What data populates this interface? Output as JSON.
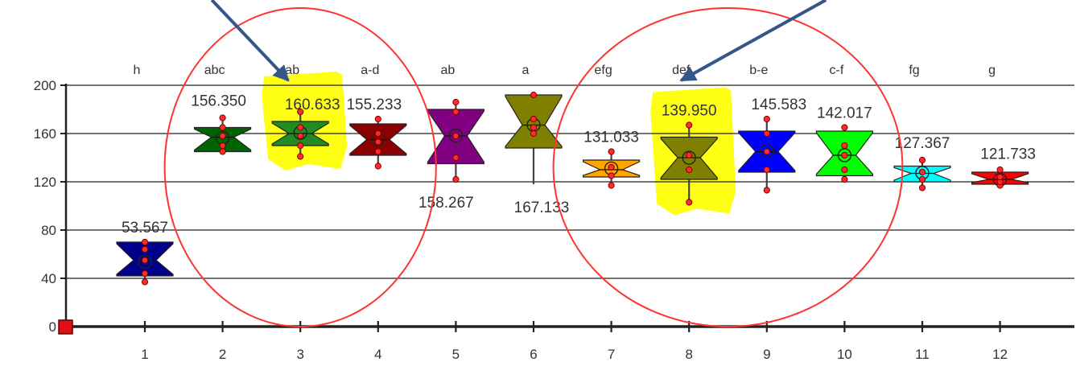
{
  "chart_data": {
    "type": "box",
    "title": "",
    "xlabel": "",
    "ylabel": "",
    "ylim": [
      0,
      200
    ],
    "y_ticks": [
      "0",
      "40",
      "80",
      "120",
      "160",
      "200"
    ],
    "x_ticks": [
      "1",
      "2",
      "3",
      "4",
      "5",
      "6",
      "7",
      "8",
      "9",
      "10",
      "11",
      "12"
    ],
    "grid": true,
    "series": [
      {
        "x": "1",
        "group": "h",
        "mean_label": "53.567",
        "mean": 53.567,
        "q1": 42,
        "median": 55,
        "q3": 70,
        "min": 37,
        "max": 70,
        "color": "#00008b",
        "points": [
          37,
          44,
          55,
          64,
          70
        ]
      },
      {
        "x": "2",
        "group": "abc",
        "mean_label": "156.350",
        "mean": 156.35,
        "q1": 145,
        "median": 157,
        "q3": 165,
        "min": 143,
        "max": 175,
        "color": "#006400",
        "points": [
          145,
          150,
          158,
          165,
          173
        ]
      },
      {
        "x": "3",
        "group": "ab",
        "mean_label": "160.633",
        "mean": 160.633,
        "q1": 150,
        "median": 160,
        "q3": 170,
        "min": 140,
        "max": 180,
        "color": "#228b22",
        "points": [
          141,
          150,
          158,
          165,
          178
        ]
      },
      {
        "x": "4",
        "group": "a-d",
        "mean_label": "155.233",
        "mean": 155.233,
        "q1": 142,
        "median": 155,
        "q3": 168,
        "min": 133,
        "max": 172,
        "color": "#8b0000",
        "points": [
          133,
          145,
          153,
          160,
          172
        ]
      },
      {
        "x": "5",
        "group": "ab",
        "mean_label": "158.267",
        "mean": 158.267,
        "q1": 135,
        "median": 158,
        "q3": 180,
        "min": 122,
        "max": 187,
        "color": "#800080",
        "points": [
          122,
          140,
          158,
          178,
          186
        ]
      },
      {
        "x": "6",
        "group": "a",
        "mean_label": "167.133",
        "mean": 167.133,
        "q1": 148,
        "median": 167,
        "q3": 192,
        "min": 118,
        "max": 192,
        "color": "#808000",
        "points": [
          160,
          165,
          172,
          192
        ]
      },
      {
        "x": "7",
        "group": "efg",
        "mean_label": "131.033",
        "mean": 131.033,
        "q1": 124,
        "median": 130,
        "q3": 138,
        "min": 117,
        "max": 145,
        "color": "#ffa500",
        "points": [
          117,
          125,
          132,
          145
        ]
      },
      {
        "x": "8",
        "group": "def",
        "mean_label": "139.950",
        "mean": 139.95,
        "q1": 122,
        "median": 140,
        "q3": 157,
        "min": 103,
        "max": 167,
        "color": "#808000",
        "points": [
          103,
          130,
          142,
          167
        ]
      },
      {
        "x": "9",
        "group": "b-e",
        "mean_label": "145.583",
        "mean": 145.583,
        "q1": 128,
        "median": 145,
        "q3": 162,
        "min": 113,
        "max": 172,
        "color": "#0000ff",
        "points": [
          113,
          130,
          145,
          160,
          172
        ]
      },
      {
        "x": "10",
        "group": "c-f",
        "mean_label": "142.017",
        "mean": 142.017,
        "q1": 125,
        "median": 142,
        "q3": 162,
        "min": 120,
        "max": 165,
        "color": "#00ff00",
        "points": [
          122,
          130,
          142,
          150,
          165
        ]
      },
      {
        "x": "11",
        "group": "fg",
        "mean_label": "127.367",
        "mean": 127.367,
        "q1": 120,
        "median": 127,
        "q3": 133,
        "min": 115,
        "max": 140,
        "color": "#00ffff",
        "points": [
          115,
          122,
          128,
          138
        ]
      },
      {
        "x": "12",
        "group": "g",
        "mean_label": "121.733",
        "mean": 121.733,
        "q1": 118,
        "median": 122,
        "q3": 128,
        "min": 115,
        "max": 131,
        "color": "#ff0000",
        "points": [
          117,
          120,
          124,
          130
        ]
      }
    ],
    "highlights": [
      {
        "type": "ellipse",
        "around": [
          "2",
          "3",
          "4"
        ],
        "color": "#ff3333"
      },
      {
        "type": "ellipse",
        "around": [
          "7",
          "8",
          "9",
          "10"
        ],
        "color": "#ff3333"
      },
      {
        "type": "marker",
        "target": "3",
        "color": "#ffff00"
      },
      {
        "type": "marker",
        "target": "8",
        "color": "#ffff00"
      },
      {
        "type": "arrow",
        "target": "3",
        "color": "#34568b"
      },
      {
        "type": "arrow",
        "target": "8",
        "color": "#34568b"
      }
    ]
  }
}
